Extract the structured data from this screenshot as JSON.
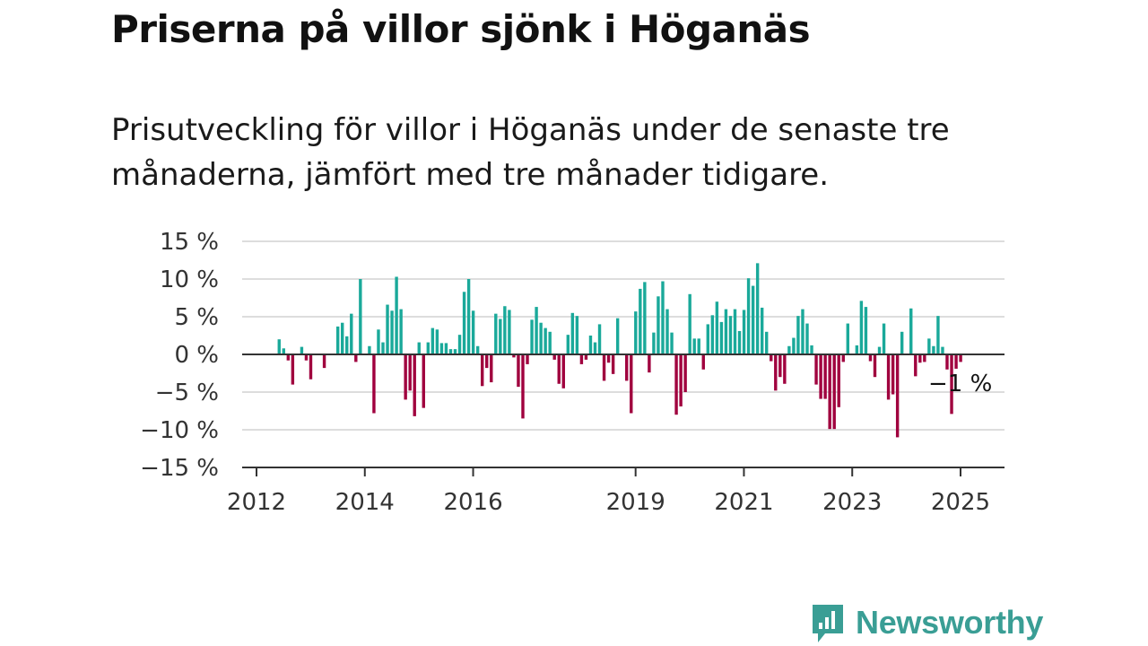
{
  "title": "Priserna på villor sjönk i Höganäs",
  "subtitle": "Prisutveckling för villor i Höganäs under de senaste tre månaderna, jämfört med tre månader tidigare.",
  "brand": {
    "name": "Newsworthy"
  },
  "colors": {
    "positive": "#1aa99a",
    "negative": "#a0003e",
    "grid": "#dddddd",
    "axis": "#333333"
  },
  "chart_data": {
    "type": "bar",
    "x_axis": {
      "type": "time",
      "tick_labels": [
        "2012",
        "2014",
        "2016",
        "2019",
        "2021",
        "2023",
        "2025"
      ],
      "tick_years": [
        2012,
        2014,
        2016,
        2019,
        2021,
        2023,
        2025
      ]
    },
    "y_axis": {
      "ticks": [
        15,
        10,
        5,
        0,
        -5,
        -10,
        -15
      ],
      "tick_labels": [
        "15 %",
        "10 %",
        "5 %",
        "0 %",
        "−5 %",
        "−10 %",
        "−15 %"
      ],
      "ylim": [
        -15,
        15
      ]
    },
    "grid": true,
    "last_value_label": "−1 %",
    "start_month": "2012-06",
    "values": [
      2,
      0.8,
      -0.8,
      -4,
      0,
      1,
      -0.8,
      -3.3,
      0,
      0,
      -1.8,
      0,
      0,
      3.7,
      4.2,
      2.4,
      5.4,
      -1,
      10,
      0,
      1.1,
      -7.8,
      3.3,
      1.6,
      6.6,
      5.8,
      10.3,
      6,
      -6,
      -4.8,
      -8.2,
      1.6,
      -7.1,
      1.6,
      3.5,
      3.3,
      1.5,
      1.5,
      0.7,
      0.7,
      2.6,
      8.3,
      10,
      5.8,
      1.1,
      -4.2,
      -1.8,
      -3.7,
      5.4,
      4.7,
      6.4,
      5.9,
      -0.4,
      -4.3,
      -8.5,
      -1.3,
      4.6,
      6.3,
      4.2,
      3.5,
      3,
      -0.7,
      -3.9,
      -4.5,
      2.6,
      5.5,
      5.1,
      -1.3,
      -0.7,
      2.5,
      1.6,
      4,
      -3.5,
      -1.1,
      -2.6,
      4.8,
      0,
      -3.5,
      -7.8,
      5.7,
      8.7,
      9.6,
      -2.4,
      2.9,
      7.7,
      9.7,
      6,
      2.9,
      -8,
      -6.9,
      -5,
      8,
      2.1,
      2.1,
      -2,
      4,
      5.2,
      7,
      4.3,
      6,
      5.1,
      6,
      3.1,
      5.9,
      10.1,
      9.1,
      12.1,
      6.2,
      3,
      -0.9,
      -4.8,
      -3,
      -3.9,
      1.1,
      2.2,
      5.1,
      6,
      4.1,
      1.2,
      -4,
      -5.9,
      -5.9,
      -9.9,
      -9.9,
      -7,
      -1,
      4.1,
      0,
      1.2,
      7.1,
      6.3,
      -0.9,
      -3,
      1,
      4.1,
      -6,
      -5.3,
      -11,
      3,
      0,
      6.1,
      -2.9,
      -1.1,
      -1,
      2.1,
      1.1,
      5.1,
      1,
      -2,
      -7.9,
      -1.9,
      -1
    ]
  }
}
